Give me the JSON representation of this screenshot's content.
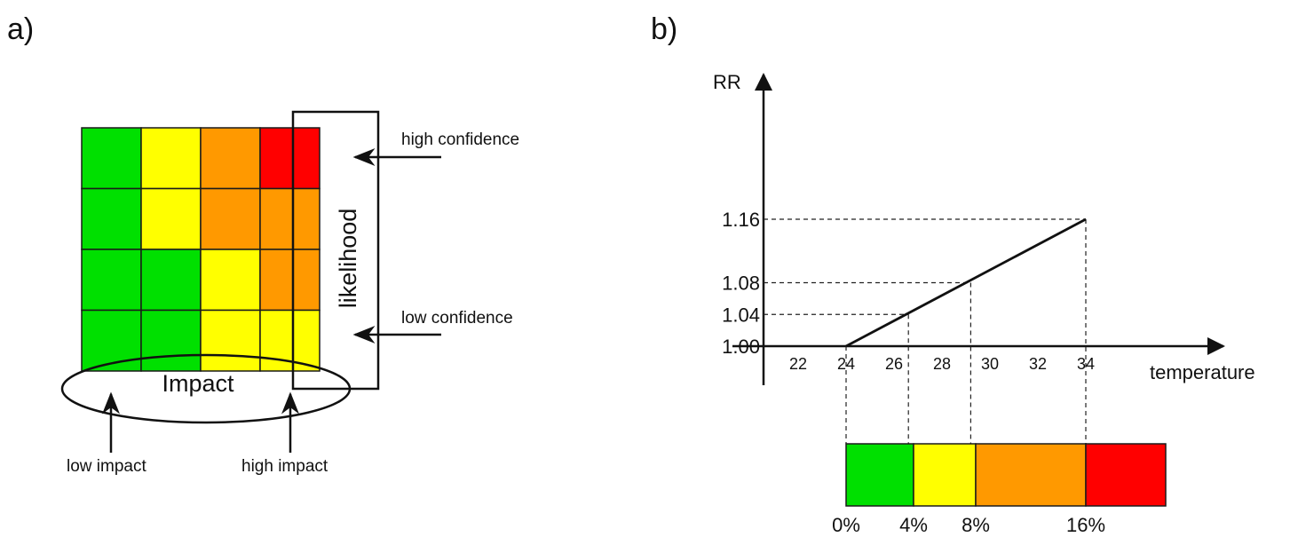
{
  "panel_a": {
    "label": "a)",
    "matrix_colors": [
      [
        "#00e000",
        "#ffff00",
        "#ff9900",
        "#ff0000"
      ],
      [
        "#00e000",
        "#ffff00",
        "#ff9900",
        "#ff9900"
      ],
      [
        "#00e000",
        "#00e000",
        "#ffff00",
        "#ff9900"
      ],
      [
        "#00e000",
        "#00e000",
        "#ffff00",
        "#ffff00"
      ]
    ],
    "likelihood_label": "likelihood",
    "impact_label": "Impact",
    "high_confidence": "high confidence",
    "low_confidence": "low confidence",
    "low_impact": "low impact",
    "high_impact": "high impact"
  },
  "panel_b": {
    "label": "b)",
    "chart_data": {
      "type": "line",
      "xlabel": "temperature",
      "ylabel": "RR",
      "x_ticks": [
        "22",
        "24",
        "26",
        "28",
        "30",
        "32",
        "34"
      ],
      "y_ticks": [
        "1.00",
        "1.04",
        "1.08",
        "1.16"
      ],
      "x": [
        24,
        34
      ],
      "y": [
        1.0,
        1.16
      ],
      "guides": [
        {
          "x": 24,
          "y": 1.0
        },
        {
          "x": 26.6,
          "y": 1.04
        },
        {
          "x": 29.2,
          "y": 1.08
        },
        {
          "x": 34,
          "y": 1.16
        }
      ]
    },
    "scale": {
      "segments": [
        {
          "color": "#00e000",
          "label": "0%"
        },
        {
          "color": "#ffff00",
          "label": "4%"
        },
        {
          "color": "#ff9900",
          "label": "8%"
        },
        {
          "color": "#ff0000",
          "label": "16%"
        }
      ]
    }
  }
}
